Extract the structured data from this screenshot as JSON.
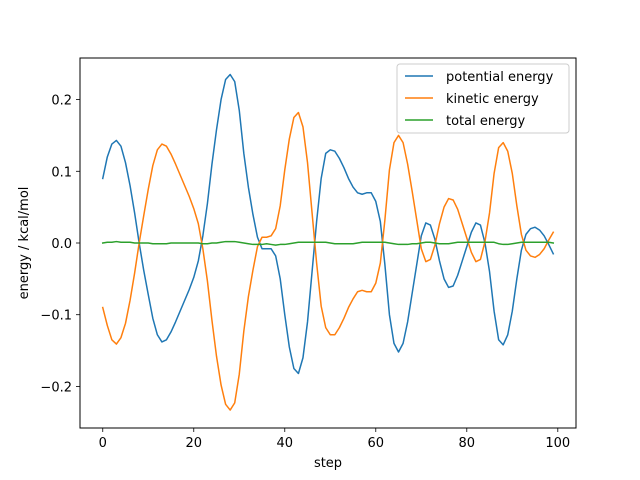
{
  "chart_data": {
    "type": "line",
    "title": "",
    "xlabel": "step",
    "ylabel": "energy / kcal/mol",
    "xlim": [
      -5,
      104
    ],
    "ylim": [
      -0.258,
      0.258
    ],
    "x_ticks": [
      0,
      20,
      40,
      60,
      80,
      100
    ],
    "y_ticks": [
      -0.2,
      -0.1,
      0.0,
      0.1,
      0.2
    ],
    "x_tick_labels": [
      "0",
      "20",
      "40",
      "60",
      "80",
      "100"
    ],
    "y_tick_labels": [
      "−0.2",
      "−0.1",
      "0.0",
      "0.1",
      "0.2"
    ],
    "grid": false,
    "legend_position": "top-right",
    "x": [
      0,
      1,
      2,
      3,
      4,
      5,
      6,
      7,
      8,
      9,
      10,
      11,
      12,
      13,
      14,
      15,
      16,
      17,
      18,
      19,
      20,
      21,
      22,
      23,
      24,
      25,
      26,
      27,
      28,
      29,
      30,
      31,
      32,
      33,
      34,
      35,
      36,
      37,
      38,
      39,
      40,
      41,
      42,
      43,
      44,
      45,
      46,
      47,
      48,
      49,
      50,
      51,
      52,
      53,
      54,
      55,
      56,
      57,
      58,
      59,
      60,
      61,
      62,
      63,
      64,
      65,
      66,
      67,
      68,
      69,
      70,
      71,
      72,
      73,
      74,
      75,
      76,
      77,
      78,
      79,
      80,
      81,
      82,
      83,
      84,
      85,
      86,
      87,
      88,
      89,
      90,
      91,
      92,
      93,
      94,
      95,
      96,
      97,
      98,
      99
    ],
    "series": [
      {
        "name": "potential energy",
        "color": "#1f77b4",
        "values": [
          0.09,
          0.12,
          0.138,
          0.143,
          0.135,
          0.112,
          0.08,
          0.042,
          0.0,
          -0.038,
          -0.072,
          -0.105,
          -0.128,
          -0.138,
          -0.135,
          -0.124,
          -0.11,
          -0.095,
          -0.08,
          -0.065,
          -0.048,
          -0.025,
          0.01,
          0.055,
          0.11,
          0.158,
          0.2,
          0.228,
          0.235,
          0.225,
          0.185,
          0.125,
          0.078,
          0.04,
          0.008,
          -0.008,
          -0.008,
          -0.008,
          -0.018,
          -0.05,
          -0.1,
          -0.145,
          -0.175,
          -0.182,
          -0.16,
          -0.11,
          -0.04,
          0.03,
          0.09,
          0.125,
          0.13,
          0.128,
          0.118,
          0.105,
          0.09,
          0.078,
          0.07,
          0.068,
          0.07,
          0.07,
          0.058,
          0.03,
          -0.03,
          -0.1,
          -0.14,
          -0.152,
          -0.14,
          -0.11,
          -0.07,
          -0.03,
          0.01,
          0.028,
          0.025,
          0.005,
          -0.025,
          -0.05,
          -0.062,
          -0.06,
          -0.045,
          -0.025,
          -0.005,
          0.015,
          0.028,
          0.025,
          0.0,
          -0.04,
          -0.095,
          -0.135,
          -0.142,
          -0.128,
          -0.095,
          -0.05,
          -0.01,
          0.012,
          0.02,
          0.022,
          0.018,
          0.01,
          -0.002,
          -0.015
        ]
      },
      {
        "name": "kinetic energy",
        "color": "#ff7f0e",
        "values": [
          -0.09,
          -0.115,
          -0.135,
          -0.141,
          -0.132,
          -0.112,
          -0.08,
          -0.042,
          0.0,
          0.038,
          0.075,
          0.108,
          0.13,
          0.138,
          0.135,
          0.124,
          0.11,
          0.095,
          0.08,
          0.065,
          0.048,
          0.027,
          -0.008,
          -0.053,
          -0.108,
          -0.158,
          -0.198,
          -0.225,
          -0.233,
          -0.223,
          -0.183,
          -0.123,
          -0.075,
          -0.038,
          -0.005,
          0.008,
          0.008,
          0.01,
          0.02,
          0.052,
          0.102,
          0.145,
          0.175,
          0.182,
          0.162,
          0.112,
          0.042,
          -0.028,
          -0.088,
          -0.118,
          -0.128,
          -0.128,
          -0.118,
          -0.105,
          -0.09,
          -0.078,
          -0.068,
          -0.066,
          -0.068,
          -0.068,
          -0.056,
          -0.028,
          0.032,
          0.102,
          0.14,
          0.15,
          0.14,
          0.11,
          0.072,
          0.032,
          -0.008,
          -0.026,
          -0.023,
          -0.003,
          0.027,
          0.05,
          0.062,
          0.06,
          0.047,
          0.027,
          0.007,
          -0.013,
          -0.026,
          -0.023,
          0.002,
          0.042,
          0.097,
          0.133,
          0.14,
          0.128,
          0.097,
          0.052,
          0.012,
          -0.01,
          -0.018,
          -0.02,
          -0.016,
          -0.008,
          0.004,
          0.015
        ]
      },
      {
        "name": "total energy",
        "color": "#2ca02c",
        "values": [
          0.0,
          0.001,
          0.001,
          0.002,
          0.001,
          0.001,
          0.001,
          0.0,
          0.0,
          0.0,
          0.0,
          -0.001,
          -0.001,
          -0.001,
          -0.001,
          0.0,
          0.0,
          0.0,
          0.0,
          0.0,
          0.0,
          0.0,
          -0.001,
          -0.001,
          0.0,
          0.0,
          0.001,
          0.002,
          0.002,
          0.002,
          0.001,
          0.0,
          -0.001,
          -0.002,
          -0.002,
          -0.002,
          -0.001,
          -0.002,
          -0.003,
          -0.002,
          -0.002,
          -0.001,
          0.0,
          0.001,
          0.001,
          0.001,
          0.001,
          0.001,
          0.001,
          0.001,
          0.0,
          -0.001,
          -0.001,
          -0.001,
          -0.001,
          -0.001,
          0.0,
          0.001,
          0.001,
          0.001,
          0.001,
          0.001,
          0.001,
          0.0,
          -0.001,
          -0.002,
          -0.002,
          -0.002,
          -0.001,
          -0.001,
          0.0,
          0.001,
          0.001,
          0.0,
          -0.001,
          -0.001,
          -0.001,
          0.0,
          0.001,
          0.001,
          0.001,
          0.001,
          0.001,
          0.001,
          0.001,
          0.001,
          0.001,
          -0.001,
          -0.002,
          -0.002,
          -0.001,
          0.0,
          0.001,
          0.001,
          0.001,
          0.001,
          0.001,
          0.001,
          0.001,
          0.0
        ]
      }
    ]
  }
}
